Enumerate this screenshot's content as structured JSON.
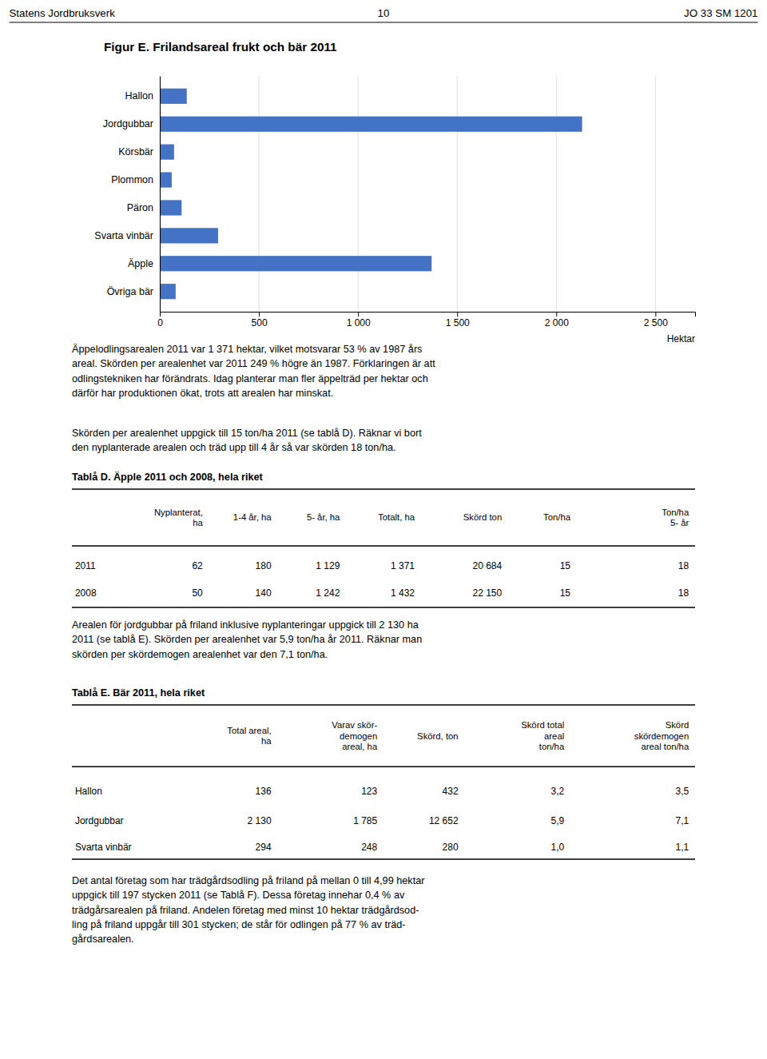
{
  "chart_data": {
    "type": "bar",
    "orientation": "horizontal",
    "title": "Figur E. Frilandsareal frukt och bär 2011",
    "categories": [
      "Hallon",
      "Jordgubbar",
      "Körsbär",
      "Plommon",
      "Päron",
      "Svarta vinbär",
      "Äpple",
      "Övriga bär"
    ],
    "values": [
      136,
      2130,
      72,
      60,
      110,
      294,
      1371,
      80
    ],
    "color": "#4472C4",
    "xlabel": "Hektar",
    "xlim": [
      0,
      2700
    ],
    "xticks": [
      0,
      500,
      {
        "value": 1000,
        "label": "1 000"
      },
      {
        "value": 1500,
        "label": "1 500"
      },
      {
        "value": 2000,
        "label": "2 000"
      },
      {
        "value": 2500,
        "label": "2 500"
      }
    ],
    "grid": true
  },
  "page": {
    "header_left": "Statens Jordbruksverk",
    "header_center": "10",
    "header_right": "JO 33 SM 1201",
    "paragraphs": [
      "Äppelodlingsarealen 2011 var 1 371 hektar, vilket motsvarar 53 % av 1987 års\nareal. Skörden per arealenhet var 2011 249 % högre än 1987. Förklaringen är att\nodlingstekniken har förändrats. Idag planterar man fler äppelträd per hektar och\ndärför har produktionen ökat, trots att arealen har minskat.",
      "Skörden per arealenhet uppgick till 15 ton/ha 2011 (se tablå D). Räknar vi bort\nden nyplanterade arealen och träd upp till 4 år så var skörden 18 ton/ha.",
      "Arealen för jordgubbar på friland inklusive nyplanteringar uppgick till 2 130 ha\n2011 (se tablå E). Skörden per arealenhet var 5,9 ton/ha år 2011. Räknar man\nskörden per skördemogen arealenhet var den 7,1 ton/ha.",
      "Det antal företag som har trädgårdsodling på friland på mellan 0 till 4,99 hektar\nuppgick till 197 stycken 2011 (se Tablå F). Dessa företag innehar 0,4 % av\nträdgårsarealen på friland. Andelen företag med minst 10 hektar trädgårdsod-\nling på friland uppgår till 301 stycken; de står för odlingen på 77 % av träd-\ngårdsarealen."
    ],
    "tables": [
      {
        "title": "Tablå D. Äpple 2011 och 2008, hela riket",
        "col_headers": [
          null,
          "Nyplanterat,\nha",
          "1-4 år, ha",
          "5- år, ha",
          "Totalt, ha",
          "Skörd ton",
          "Ton/ha",
          "Ton/ha\n5- år"
        ],
        "rows": [
          [
            "2011",
            "62",
            "180",
            "1 129",
            "1 371",
            "20 684",
            "15",
            "18"
          ],
          [
            "2008",
            "50",
            "140",
            "1 242",
            "1 432",
            "22 150",
            "15",
            "18"
          ]
        ]
      },
      {
        "title": "Tablå E. Bär 2011, hela riket",
        "col_headers": [
          null,
          "Total areal,\nha",
          "Varav skör-\ndemogen\nareal, ha",
          "Skörd, ton",
          "Skörd total\nareal\nton/ha",
          "Skörd\nskördemogen\nareal ton/ha"
        ],
        "rows": [
          [
            "Hallon",
            "136",
            "123",
            "432",
            "3,2",
            "3,5"
          ],
          [
            "Jordgubbar",
            "2 130",
            "1 785",
            "12 652",
            "5,9",
            "7,1"
          ],
          [
            "Svarta vinbär",
            "294",
            "248",
            "280",
            "1,0",
            "1,1"
          ]
        ]
      }
    ]
  }
}
